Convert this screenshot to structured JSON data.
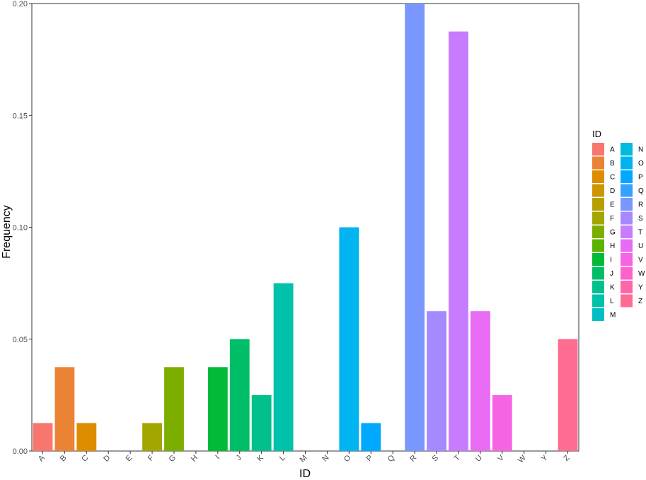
{
  "chart_data": {
    "type": "bar",
    "xlabel": "ID",
    "ylabel": "Frequency",
    "ylim": [
      0,
      0.2
    ],
    "yticks": [
      "0.00",
      "0.05",
      "0.10",
      "0.15",
      "0.20"
    ],
    "ytick_values": [
      0,
      0.05,
      0.1,
      0.15,
      0.2
    ],
    "grid": false,
    "legend_title": "ID",
    "legend_placement": "right",
    "categories": [
      "A",
      "B",
      "C",
      "D",
      "E",
      "F",
      "G",
      "H",
      "I",
      "J",
      "K",
      "L",
      "M",
      "N",
      "O",
      "P",
      "Q",
      "R",
      "S",
      "T",
      "U",
      "V",
      "W",
      "Y",
      "Z"
    ],
    "values": [
      0.0125,
      0.0375,
      0.0125,
      0,
      0,
      0.0125,
      0.0375,
      0,
      0.0375,
      0.05,
      0.025,
      0.075,
      0,
      0,
      0.1,
      0.0125,
      0,
      0.2,
      0.0625,
      0.1875,
      0.0625,
      0.025,
      0,
      0,
      0.05
    ],
    "colors": [
      "#F8766D",
      "#EB8335",
      "#DE8C00",
      "#CD9600",
      "#B79F00",
      "#A3A500",
      "#7CAE00",
      "#5BB300",
      "#00BA38",
      "#00BE67",
      "#00C08B",
      "#00C1A9",
      "#00BFC4",
      "#00BBDB",
      "#00B4F0",
      "#00A9FF",
      "#35A2FF",
      "#7997FF",
      "#A58AFF",
      "#C77CFF",
      "#E76BF3",
      "#F564E3",
      "#FF61CC",
      "#FF66A8",
      "#FF6C91"
    ]
  }
}
